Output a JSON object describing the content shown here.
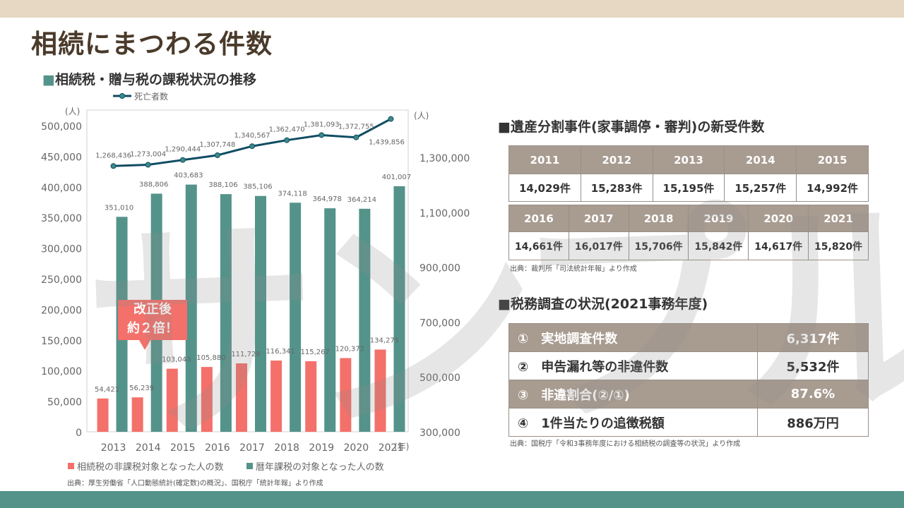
{
  "page": {
    "title": "相続にまつわる件数",
    "watermark": "サンプル"
  },
  "chart_data": {
    "type": "bar+line",
    "title": "相続税・贈与税の課税状況の推移",
    "categories": [
      "2013",
      "2014",
      "2015",
      "2016",
      "2017",
      "2018",
      "2019",
      "2020",
      "2021"
    ],
    "left_axis": {
      "unit_label": "(人)",
      "ylim": [
        0,
        500000
      ],
      "ticks": [
        "0",
        "50,000",
        "100,000",
        "150,000",
        "200,000",
        "250,000",
        "300,000",
        "350,000",
        "400,000",
        "450,000",
        "500,000"
      ]
    },
    "right_axis": {
      "unit_label": "(人)",
      "ylim": [
        300000,
        1500000
      ],
      "ticks": [
        "300,000",
        "500,000",
        "700,000",
        "900,000",
        "1,100,000",
        "1,300,000"
      ]
    },
    "x_unit_label": "(年)",
    "series": [
      {
        "name": "相続税の非課税対象となった人の数",
        "type": "bar",
        "axis": "left",
        "color": "#f4706a",
        "values": [
          54421,
          56239,
          103043,
          105880,
          111728,
          116341,
          115267,
          120372,
          134275
        ],
        "labels": [
          "54,421",
          "56,239",
          "103,043",
          "105,880",
          "111,728",
          "116,341",
          "115,267",
          "120,372",
          "134,275"
        ]
      },
      {
        "name": "暦年課税の対象となった人の数",
        "type": "bar",
        "axis": "left",
        "color": "#54938a",
        "values": [
          351010,
          388806,
          403683,
          388106,
          385106,
          374118,
          364978,
          364214,
          401007
        ],
        "labels": [
          "351,010",
          "388,806",
          "403,683",
          "388,106",
          "385,106",
          "374,118",
          "364,978",
          "364,214",
          "401,007"
        ]
      },
      {
        "name": "死亡者数",
        "type": "line",
        "axis": "right",
        "color": "#0f4d63",
        "values": [
          1268436,
          1273004,
          1290444,
          1307748,
          1340567,
          1362470,
          1381093,
          1372755,
          1439856
        ],
        "labels": [
          "1,268,436",
          "1,273,004",
          "1,290,444",
          "1,307,748",
          "1,340,567",
          "1,362,470",
          "1,381,093",
          "1,372,755",
          "1,439,856"
        ]
      }
    ],
    "legend_placement": "top (line) / bottom (bars)",
    "callout": {
      "line1": "改正後",
      "line2": "約２倍！"
    },
    "source": "出典：厚生労働省「人口動態統計(確定数)の概況」、国税庁「統計年報」より作成"
  },
  "estate_section": {
    "heading": "遺産分割事件(家事調停・審判)の新受件数",
    "row1": {
      "years": [
        "2011",
        "2012",
        "2013",
        "2014",
        "2015"
      ],
      "counts": [
        "14,029件",
        "15,283件",
        "15,195件",
        "15,257件",
        "14,992件"
      ]
    },
    "row2": {
      "years": [
        "2016",
        "2017",
        "2018",
        "2019",
        "2020",
        "2021"
      ],
      "counts": [
        "14,661件",
        "16,017件",
        "15,706件",
        "15,842件",
        "14,617件",
        "15,820件"
      ]
    },
    "source": "出典：裁判所「司法統計年報」より作成"
  },
  "tax_section": {
    "heading": "税務調査の状況(2021事務年度)",
    "rows": [
      {
        "label": "①　実地調査件数",
        "value": "6,317件"
      },
      {
        "label": "②　申告漏れ等の非違件数",
        "value": "5,532件"
      },
      {
        "label": "③　非違割合(②/①)",
        "value": "87.6%"
      },
      {
        "label": "④　1件当たりの追徴税額",
        "value": "886万円"
      }
    ],
    "source": "出典：国税庁「令和3事務年度における相続税の調査等の状況」より作成"
  }
}
